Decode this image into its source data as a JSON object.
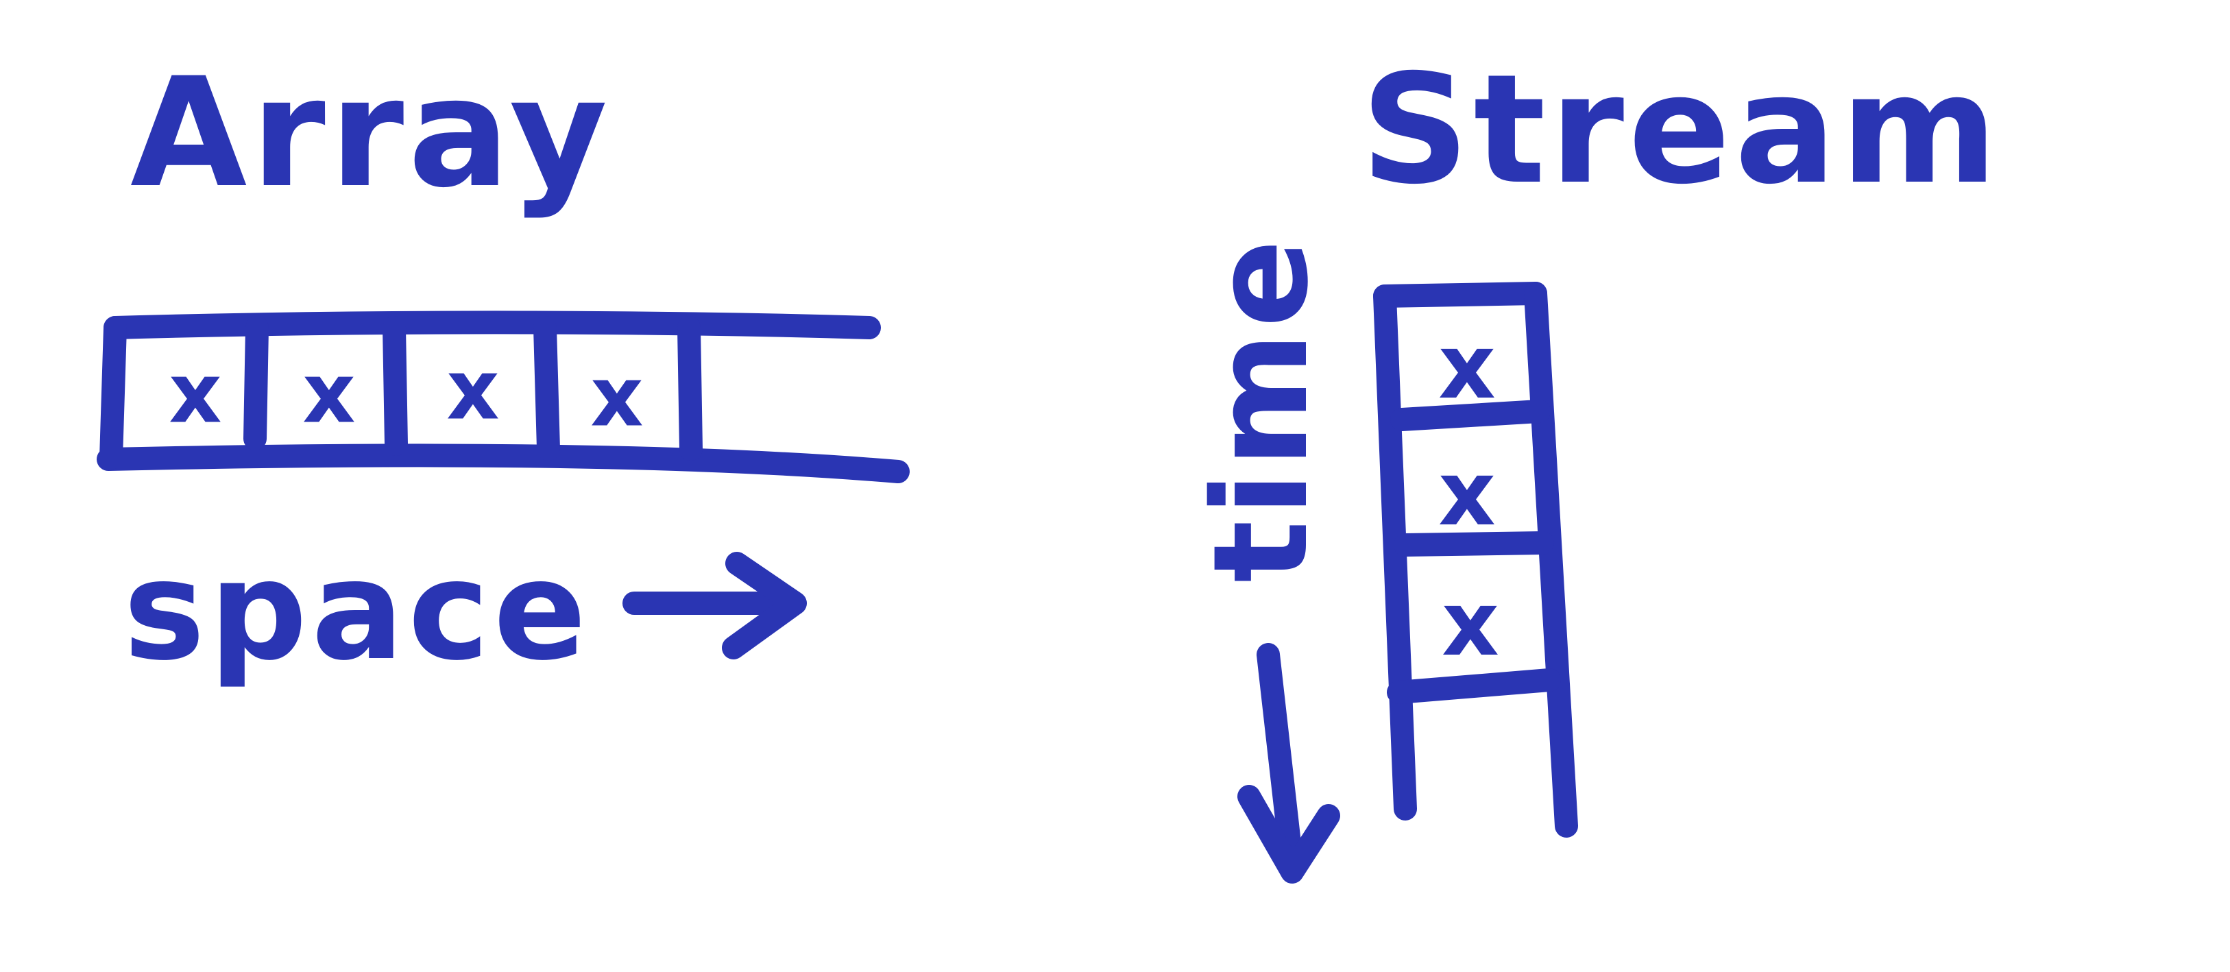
{
  "ink_color": "#2a35b3",
  "paper_color": "#ffffff",
  "array": {
    "title": "Array",
    "axis_label": "space",
    "filled_cell_mark": "x",
    "cells": [
      {
        "filled": true
      },
      {
        "filled": true
      },
      {
        "filled": true
      },
      {
        "filled": true
      },
      {
        "filled": false
      }
    ],
    "axis_direction": "right"
  },
  "stream": {
    "title": "Stream",
    "axis_label": "time",
    "filled_cell_mark": "x",
    "cells": [
      {
        "filled": true
      },
      {
        "filled": true
      },
      {
        "filled": true
      }
    ],
    "axis_direction": "down"
  }
}
